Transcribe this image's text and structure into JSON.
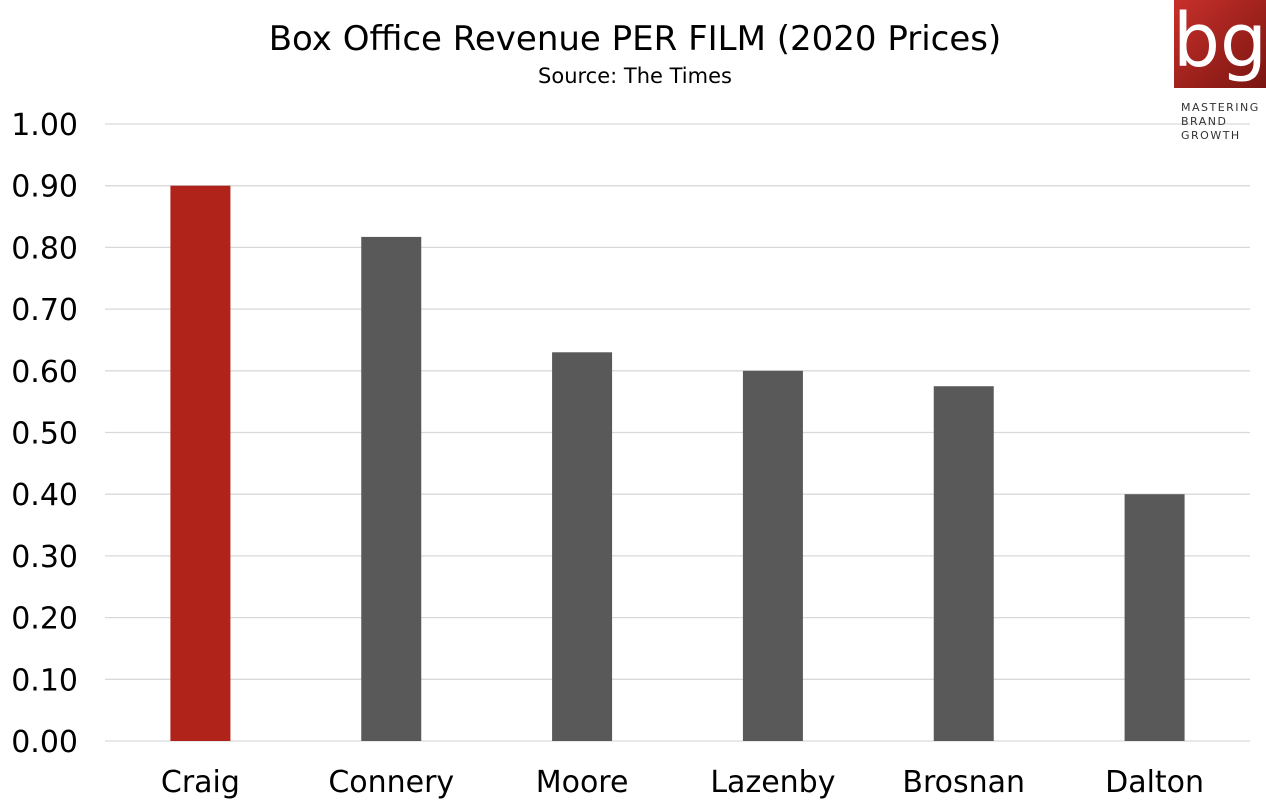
{
  "chart_data": {
    "type": "bar",
    "title": "Box Office Revenue PER FILM (2020 Prices)",
    "subtitle": "Source: The Times",
    "categories": [
      "Craig",
      "Connery",
      "Moore",
      "Lazenby",
      "Brosnan",
      "Dalton"
    ],
    "values": [
      0.9,
      0.817,
      0.63,
      0.6,
      0.575,
      0.4
    ],
    "ylim": [
      0,
      1.0
    ],
    "yticks": [
      "0.00",
      "0.10",
      "0.20",
      "0.30",
      "0.40",
      "0.50",
      "0.60",
      "0.70",
      "0.80",
      "0.90",
      "1.00"
    ],
    "grid": true,
    "colors": {
      "highlight": "#b0231b",
      "default": "#595959"
    },
    "highlight_index": 0
  },
  "logo": {
    "mark": "bg",
    "tagline": [
      "MASTERING",
      "BRAND",
      "GROWTH"
    ],
    "colors": [
      "#c8302a",
      "#7a1511"
    ]
  }
}
